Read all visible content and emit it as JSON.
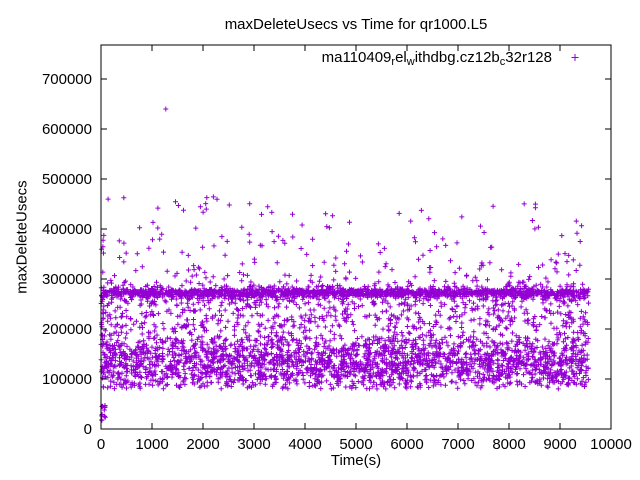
{
  "window": {
    "background": "#ffffff"
  },
  "chart_data": {
    "type": "scatter",
    "title": "maxDeleteUsecs vs Time for qr1000.L5",
    "xlabel": "Time(s)",
    "ylabel": "maxDeleteUsecs",
    "xlim": [
      0,
      10000
    ],
    "ylim": [
      0,
      768000
    ],
    "xticks": [
      0,
      1000,
      2000,
      3000,
      4000,
      5000,
      6000,
      7000,
      8000,
      9000,
      10000
    ],
    "yticks": [
      0,
      100000,
      200000,
      300000,
      400000,
      500000,
      600000,
      700000
    ],
    "grid": false,
    "frame_color": "#000000",
    "background": "#ffffff",
    "marker": {
      "shape": "plus",
      "color": "#9400d3",
      "arm": 2.5
    },
    "legend": {
      "label": "ma110409_rel_withdbg.cz12b_c32r128",
      "position": "top-right-inside",
      "display_segments": [
        {
          "t": "ma110409"
        },
        {
          "t": "r",
          "sub": true
        },
        {
          "t": "el"
        },
        {
          "t": "w",
          "sub": true
        },
        {
          "t": "ithdbg.cz12b"
        },
        {
          "t": "c",
          "sub": true
        },
        {
          "t": "32r128"
        }
      ],
      "text_x": 552,
      "text_y": 62,
      "marker_x": 575,
      "marker_y": 57.5
    },
    "points": {
      "seed": 20110409,
      "note": "Dense random scatter (~4800 pts) summarized as distribution clusters read from the plot; x data spans 0..~9560 s",
      "clusters": [
        {
          "name": "dense-band-270k",
          "count": 1500,
          "x": [
            0,
            9560
          ],
          "y_mode": "gauss",
          "y_center": 272000,
          "y_sd": 4500,
          "y_clip": [
            259000,
            286000
          ]
        },
        {
          "name": "dense-cloud-low",
          "count": 2400,
          "x": [
            0,
            9560
          ],
          "y_mode": "gauss",
          "y_center": 135000,
          "y_sd": 34000,
          "y_clip": [
            80000,
            200000
          ]
        },
        {
          "name": "mid-scatter",
          "count": 550,
          "x": [
            0,
            9560
          ],
          "y_mode": "uniform",
          "y_clip": [
            200000,
            264000
          ]
        },
        {
          "name": "upper-sparse",
          "count": 280,
          "x": [
            0,
            9560
          ],
          "y_mode": "power",
          "y_base": 284000,
          "y_span": 181000,
          "y_exp": 2.3
        },
        {
          "name": "left-edge-column",
          "count": 22,
          "x": [
            0,
            60
          ],
          "y_mode": "uniform",
          "y_clip": [
            95000,
            410000
          ]
        },
        {
          "name": "startup-low",
          "count": 13,
          "x": [
            0,
            90
          ],
          "y_mode": "uniform",
          "y_clip": [
            15000,
            52000
          ]
        }
      ],
      "outliers": [
        [
          1270,
          640000
        ]
      ]
    }
  }
}
